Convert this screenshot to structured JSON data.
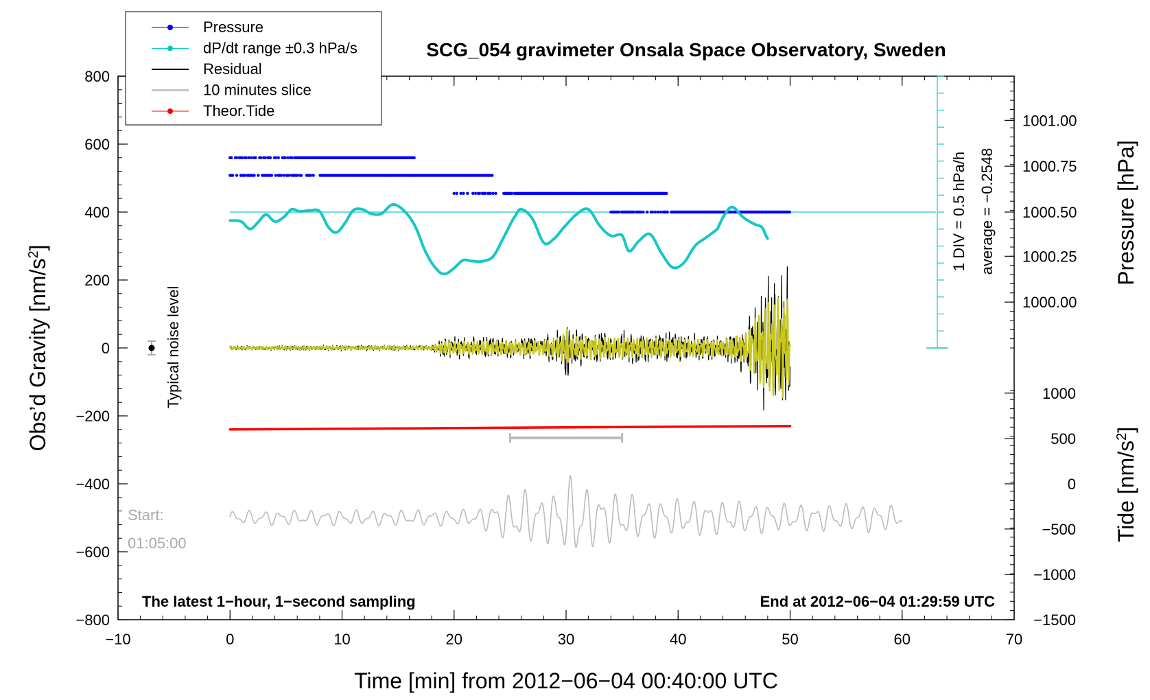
{
  "chart_data": {
    "type": "line",
    "title": "SCG_054 gravimeter Onsala Space Observatory, Sweden",
    "xlabel": "Time [min] from 2012−06−04 00:40:00 UTC",
    "ylabel": "Obs’d Gravity [nm/s",
    "ylabel_sup": "2",
    "ylabel_end": "]",
    "y2label_pressure": "Pressure [hPa]",
    "y2label_tide": "Tide [nm/s",
    "y2label_tide_sup": "2",
    "y2label_tide_end": "]",
    "xlim": [
      -10,
      70
    ],
    "ylim": [
      -800,
      800
    ],
    "x_ticks": [
      "−10",
      "0",
      "10",
      "20",
      "30",
      "40",
      "50",
      "60",
      "70"
    ],
    "x_tick_values": [
      -10,
      0,
      10,
      20,
      30,
      40,
      50,
      60,
      70
    ],
    "y_ticks": [
      "−800",
      "−600",
      "−400",
      "−200",
      "0",
      "200",
      "400",
      "600",
      "800"
    ],
    "y_tick_values": [
      -800,
      -600,
      -400,
      -200,
      0,
      200,
      400,
      600,
      800
    ],
    "pressure_ticks": [
      "1000.00",
      "1000.25",
      "1000.50",
      "1000.75",
      "1001.00"
    ],
    "pressure_tick_gravity_values": [
      135,
      270,
      400,
      535,
      670
    ],
    "tide_ticks": [
      "−1500",
      "−1000",
      "−500",
      "0",
      "500",
      "1000"
    ],
    "tide_tick_gravity_values": [
      -800,
      -667,
      -533,
      -400,
      -267,
      -133
    ],
    "legend": [
      {
        "label": "Pressure",
        "color": "#0000ff",
        "marker": true
      },
      {
        "label": "dP/dt range ±0.3 hPa/s",
        "color": "#00c8c8",
        "marker": true
      },
      {
        "label": "Residual",
        "color": "#000000",
        "marker": false
      },
      {
        "label": "10 minutes slice",
        "color": "#bbbbbb",
        "marker": false
      },
      {
        "label": "Theor.Tide",
        "color": "#ff0000",
        "marker": true
      }
    ],
    "annotations": {
      "noise_label": "Typical noise level",
      "start_label": "Start:",
      "start_time": "01:05:00",
      "bottom_left": "The latest 1−hour, 1−second sampling",
      "bottom_right": "End at 2012−06−04 01:29:59 UTC",
      "div_label": "1 DIV = 0.5 hPa/h",
      "average_label": "average = −0.2548"
    },
    "pressure_bands": [
      {
        "y": 560,
        "x_start": 0,
        "x_end": 16.5
      },
      {
        "y": 508,
        "x_start": 0,
        "x_end": 23.5
      },
      {
        "y": 455,
        "x_start": 20,
        "x_end": 39
      },
      {
        "y": 400,
        "x_start": 34,
        "x_end": 50
      }
    ],
    "dpdt_reference_y": 400,
    "series": [
      {
        "name": "dP/dt range ±0.3 hPa/s",
        "color": "#19c6c6",
        "x": [
          0,
          1,
          1.8,
          2.5,
          3.2,
          4,
          4.8,
          5.5,
          6.2,
          7.2,
          8,
          8.8,
          9.5,
          10.2,
          11,
          11.8,
          12.6,
          13.5,
          14.5,
          15.5,
          16.5,
          17.5,
          18.5,
          19.2,
          20,
          20.8,
          21.5,
          22.5,
          23.5,
          24.5,
          25.5,
          26,
          27,
          28,
          28.8,
          29.8,
          31,
          32,
          33,
          34,
          35,
          35.6,
          36.5,
          37.5,
          38.5,
          39.5,
          40.5,
          41.5,
          42.5,
          43.5,
          44,
          44.8,
          45.8,
          46.8,
          47.5,
          48
        ],
        "values": [
          375,
          372,
          350,
          370,
          393,
          372,
          385,
          408,
          402,
          405,
          402,
          355,
          340,
          365,
          405,
          408,
          395,
          395,
          422,
          405,
          360,
          280,
          230,
          218,
          235,
          258,
          256,
          255,
          270,
          330,
          390,
          408,
          380,
          310,
          318,
          355,
          395,
          408,
          360,
          330,
          332,
          285,
          315,
          335,
          280,
          237,
          250,
          300,
          325,
          350,
          385,
          415,
          385,
          365,
          355,
          322
        ]
      },
      {
        "name": "Theor.Tide",
        "color": "#ff0000",
        "x": [
          0,
          10,
          20,
          30,
          40,
          50
        ],
        "values": [
          -240,
          -238,
          -236,
          -234,
          -232,
          -230
        ]
      }
    ],
    "residual": {
      "color": "#000000",
      "fit_color": "#c8c81e",
      "x_start": 0,
      "x_end": 50,
      "envelope": [
        {
          "x": 0,
          "amp": 8
        },
        {
          "x": 18,
          "amp": 10
        },
        {
          "x": 19,
          "amp": 35
        },
        {
          "x": 28,
          "amp": 40
        },
        {
          "x": 29.5,
          "amp": 60
        },
        {
          "x": 30,
          "amp": 110
        },
        {
          "x": 30.5,
          "amp": 60
        },
        {
          "x": 35,
          "amp": 55
        },
        {
          "x": 40,
          "amp": 50
        },
        {
          "x": 44,
          "amp": 45
        },
        {
          "x": 46,
          "amp": 80
        },
        {
          "x": 47,
          "amp": 180
        },
        {
          "x": 48,
          "amp": 260
        },
        {
          "x": 49,
          "amp": 280
        },
        {
          "x": 50,
          "amp": 260
        }
      ]
    },
    "slice_bracket": {
      "x_start": 25,
      "x_end": 35,
      "y": -265,
      "color": "#bbbbbb"
    },
    "slice": {
      "color": "#bbbbbb",
      "x_start": 0,
      "x_end": 60,
      "baseline": -500,
      "envelope": [
        {
          "x": 0,
          "amp": 22
        },
        {
          "x": 22,
          "amp": 25
        },
        {
          "x": 24,
          "amp": 60
        },
        {
          "x": 26,
          "amp": 90
        },
        {
          "x": 28,
          "amp": 70
        },
        {
          "x": 30,
          "amp": 110
        },
        {
          "x": 31,
          "amp": 150
        },
        {
          "x": 32,
          "amp": 90
        },
        {
          "x": 38,
          "amp": 60
        },
        {
          "x": 45,
          "amp": 50
        },
        {
          "x": 52,
          "amp": 40
        },
        {
          "x": 58,
          "amp": 45
        },
        {
          "x": 60,
          "amp": 30
        }
      ]
    },
    "noise_bar": {
      "x": -7,
      "y": 0,
      "err": 20
    }
  }
}
